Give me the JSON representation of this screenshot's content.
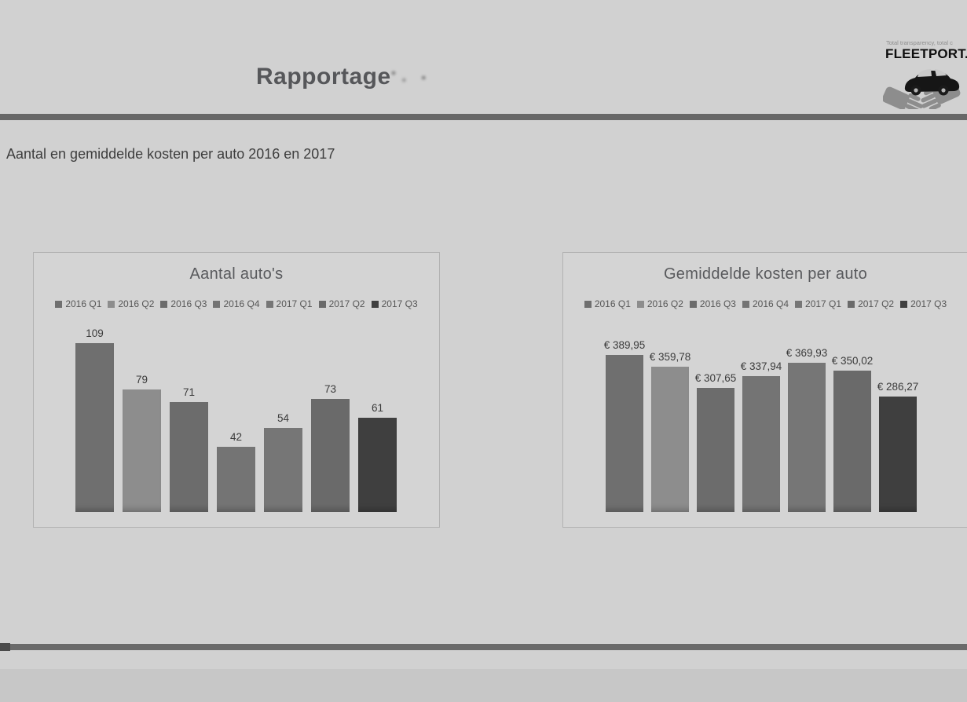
{
  "page": {
    "title": "Rapportage",
    "subtitle": "Aantal en gemiddelde kosten per auto 2016 en 2017"
  },
  "logo": {
    "tagline": "Total transparency, total c",
    "brand": "FLEETPORT."
  },
  "colors": {
    "divider": "#676767",
    "page_background": "#d1d1d1",
    "panel_background": "#d4d4d4"
  },
  "chart_data": [
    {
      "type": "bar",
      "title": "Aantal auto's",
      "categories": [
        "2016 Q1",
        "2016 Q2",
        "2016 Q3",
        "2016 Q4",
        "2017 Q1",
        "2017 Q2",
        "2017 Q3"
      ],
      "values": [
        109,
        79,
        71,
        42,
        54,
        73,
        61
      ],
      "labels": [
        "109",
        "79",
        "71",
        "42",
        "54",
        "73",
        "61"
      ],
      "colors": [
        "#6f6f6f",
        "#8d8d8d",
        "#6c6c6c",
        "#747474",
        "#767676",
        "#6a6a6a",
        "#3f3f3f"
      ],
      "ylim": [
        0,
        120
      ],
      "grid": false,
      "legend_position": "top",
      "xlabel": "",
      "ylabel": ""
    },
    {
      "type": "bar",
      "title": "Gemiddelde kosten per auto",
      "categories": [
        "2016 Q1",
        "2016 Q2",
        "2016 Q3",
        "2016 Q4",
        "2017 Q1",
        "2017 Q2",
        "2017 Q3"
      ],
      "values": [
        389.95,
        359.78,
        307.65,
        337.94,
        369.93,
        350.02,
        286.27
      ],
      "labels": [
        "€ 389,95",
        "€ 359,78",
        "€ 307,65",
        "€ 337,94",
        "€ 369,93",
        "€ 350,02",
        "€ 286,27"
      ],
      "colors": [
        "#6f6f6f",
        "#8d8d8d",
        "#6c6c6c",
        "#747474",
        "#767676",
        "#6a6a6a",
        "#3f3f3f"
      ],
      "ylim": [
        0,
        420
      ],
      "grid": false,
      "legend_position": "top",
      "xlabel": "",
      "ylabel": ""
    }
  ]
}
